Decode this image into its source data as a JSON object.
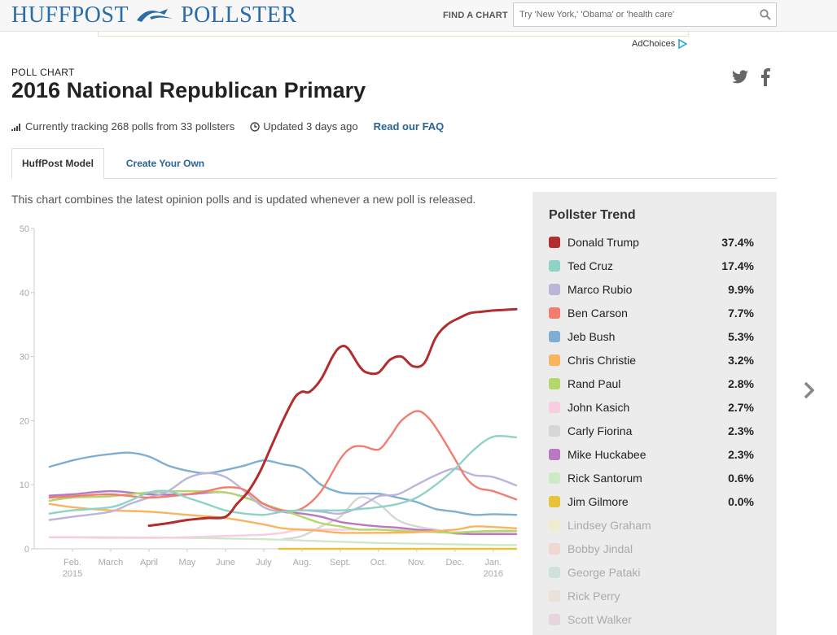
{
  "header": {
    "logo_left": "HUFFPOST",
    "logo_right": "POLLSTER",
    "find_label": "FIND A CHART",
    "search_placeholder": "Try 'New York,' 'Obama' or 'health care'",
    "ad_choices": "AdChoices"
  },
  "page": {
    "kicker": "POLL CHART",
    "title": "2016 National Republican Primary",
    "tracking": "Currently tracking 268 polls from 33 pollsters",
    "updated": "Updated 3 days ago",
    "faq": "Read our FAQ",
    "tabs": [
      "HuffPost Model",
      "Create Your Own"
    ],
    "description": "This chart combines the latest opinion polls and is updated whenever a new poll is released."
  },
  "legend": {
    "title": "Pollster Trend",
    "items": [
      {
        "name": "Donald Trump",
        "value": "37.4%",
        "color": "#b22d2d",
        "active": true
      },
      {
        "name": "Ted Cruz",
        "value": "17.4%",
        "color": "#8fd3c7",
        "active": true
      },
      {
        "name": "Marco Rubio",
        "value": "9.9%",
        "color": "#bcb4d9",
        "active": true
      },
      {
        "name": "Ben Carson",
        "value": "7.7%",
        "color": "#f27d6f",
        "active": true
      },
      {
        "name": "Jeb Bush",
        "value": "5.3%",
        "color": "#7eaed3",
        "active": true
      },
      {
        "name": "Chris Christie",
        "value": "3.2%",
        "color": "#f9b460",
        "active": true
      },
      {
        "name": "Rand Paul",
        "value": "2.8%",
        "color": "#b2d86b",
        "active": true
      },
      {
        "name": "John Kasich",
        "value": "2.7%",
        "color": "#f8cce1",
        "active": true
      },
      {
        "name": "Carly Fiorina",
        "value": "2.3%",
        "color": "#d6d6d6",
        "active": true
      },
      {
        "name": "Mike Huckabee",
        "value": "2.3%",
        "color": "#b978c0",
        "active": true
      },
      {
        "name": "Rick Santorum",
        "value": "0.6%",
        "color": "#cbeac5",
        "active": true
      },
      {
        "name": "Jim Gilmore",
        "value": "0.0%",
        "color": "#e8c33a",
        "active": true
      },
      {
        "name": "Lindsey Graham",
        "value": "",
        "color": "#f7eeb0",
        "active": false
      },
      {
        "name": "Bobby Jindal",
        "value": "",
        "color": "#f4c1ac",
        "active": false
      },
      {
        "name": "George Pataki",
        "value": "",
        "color": "#a9d6c8",
        "active": false
      },
      {
        "name": "Rick Perry",
        "value": "",
        "color": "#e6d8c2",
        "active": false
      },
      {
        "name": "Scott Walker",
        "value": "",
        "color": "#dfb8cf",
        "active": false
      }
    ]
  },
  "chart_data": {
    "type": "line",
    "title": "2016 National Republican Primary",
    "xlabel": "",
    "ylabel": "",
    "ylim": [
      0,
      50
    ],
    "yticks": [
      0,
      10,
      20,
      30,
      40,
      50
    ],
    "xlim": [
      0,
      12.6
    ],
    "xticks": [
      {
        "x": 1,
        "label": "Feb.",
        "sub": "2015"
      },
      {
        "x": 2,
        "label": "March",
        "sub": ""
      },
      {
        "x": 3,
        "label": "April",
        "sub": ""
      },
      {
        "x": 4,
        "label": "May",
        "sub": ""
      },
      {
        "x": 5,
        "label": "June",
        "sub": ""
      },
      {
        "x": 6,
        "label": "July",
        "sub": ""
      },
      {
        "x": 7,
        "label": "Aug.",
        "sub": ""
      },
      {
        "x": 8,
        "label": "Sept.",
        "sub": ""
      },
      {
        "x": 9,
        "label": "Oct.",
        "sub": ""
      },
      {
        "x": 10,
        "label": "Nov.",
        "sub": ""
      },
      {
        "x": 11,
        "label": "Dec.",
        "sub": ""
      },
      {
        "x": 12,
        "label": "Jan.",
        "sub": "2016"
      }
    ],
    "series": [
      {
        "name": "Carly Fiorina",
        "color": "#d6d6d6",
        "x": [
          6.5,
          7.0,
          7.5,
          8.0,
          8.5,
          9.0,
          9.5,
          10.0,
          10.5,
          11.0,
          11.5,
          12.0,
          12.6
        ],
        "values": [
          1.5,
          2.0,
          3.5,
          5.0,
          8.0,
          7.0,
          4.5,
          3.5,
          3.0,
          2.5,
          2.4,
          2.4,
          2.3
        ]
      },
      {
        "name": "Rick Santorum",
        "color": "#cbeac5",
        "x": [
          0.4,
          2,
          4,
          6,
          7,
          8,
          9,
          10,
          11,
          12,
          12.6
        ],
        "values": [
          1.8,
          1.8,
          1.7,
          1.5,
          1.3,
          1.1,
          0.9,
          0.8,
          0.7,
          0.6,
          0.6
        ]
      },
      {
        "name": "John Kasich",
        "color": "#f8cce1",
        "x": [
          0.4,
          1,
          2,
          3,
          4,
          5,
          6,
          6.5,
          7,
          8,
          9,
          10,
          11,
          12,
          12.6
        ],
        "values": [
          1.8,
          1.8,
          1.7,
          1.7,
          1.8,
          2.0,
          2.2,
          2.5,
          3.0,
          3.0,
          3.0,
          2.8,
          2.6,
          2.7,
          2.7
        ]
      },
      {
        "name": "Mike Huckabee",
        "color": "#b978c0",
        "x": [
          0.4,
          1,
          2,
          3,
          4,
          5,
          6,
          6.5,
          7,
          7.5,
          8,
          8.5,
          9,
          9.5,
          10,
          10.5,
          11,
          11.5,
          12,
          12.6
        ],
        "values": [
          8.3,
          8.5,
          9.0,
          8.5,
          8.5,
          8.8,
          7.0,
          5.8,
          5.5,
          5.0,
          4.2,
          3.8,
          3.5,
          3.3,
          3.0,
          2.8,
          2.4,
          2.3,
          2.3,
          2.3
        ]
      },
      {
        "name": "Rand Paul",
        "color": "#b2d86b",
        "x": [
          0.4,
          1,
          2,
          3,
          4,
          5,
          5.5,
          6,
          6.5,
          7,
          7.5,
          8,
          8.5,
          9,
          9.5,
          10,
          10.5,
          11,
          11.5,
          12,
          12.6
        ],
        "values": [
          7.5,
          8.0,
          8.2,
          8.8,
          9.0,
          8.8,
          8.0,
          7.0,
          6.0,
          5.0,
          4.0,
          3.5,
          3.0,
          3.0,
          2.8,
          2.7,
          2.6,
          2.5,
          2.7,
          2.8,
          2.8
        ]
      },
      {
        "name": "Chris Christie",
        "color": "#f9b460",
        "x": [
          0.4,
          1,
          2,
          3,
          4,
          5,
          6,
          6.5,
          7,
          7.5,
          8,
          9,
          10,
          11,
          11.5,
          12,
          12.6
        ],
        "values": [
          7.0,
          6.5,
          6.0,
          5.8,
          5.3,
          4.8,
          3.8,
          3.2,
          3.0,
          2.8,
          2.5,
          2.5,
          2.6,
          3.0,
          3.5,
          3.4,
          3.2
        ]
      },
      {
        "name": "Jeb Bush",
        "color": "#7eaed3",
        "x": [
          0.4,
          1,
          1.5,
          2,
          2.5,
          3,
          3.5,
          4,
          4.5,
          5,
          5.5,
          6,
          6.5,
          7,
          7.5,
          8,
          8.5,
          9,
          9.5,
          10,
          10.5,
          11,
          11.5,
          12,
          12.6
        ],
        "values": [
          12.8,
          13.8,
          14.4,
          14.8,
          15.0,
          14.4,
          13.0,
          12.2,
          11.8,
          12.3,
          13.0,
          13.8,
          13.2,
          12.5,
          10.0,
          8.8,
          8.6,
          8.6,
          8.0,
          7.3,
          6.2,
          5.8,
          5.3,
          5.4,
          5.3
        ]
      },
      {
        "name": "Marco Rubio",
        "color": "#bcb4d9",
        "x": [
          0.4,
          1,
          2,
          2.5,
          3,
          3.5,
          4,
          4.5,
          5,
          5.5,
          6,
          6.5,
          7,
          7.5,
          8,
          8.5,
          9,
          9.5,
          10,
          10.5,
          11,
          11.5,
          12,
          12.6
        ],
        "values": [
          4.5,
          5.0,
          5.8,
          7.0,
          8.0,
          9.0,
          11.0,
          11.8,
          11.2,
          9.0,
          6.5,
          5.8,
          6.0,
          5.8,
          5.5,
          6.5,
          8.2,
          8.5,
          10.0,
          11.5,
          12.5,
          11.5,
          11.2,
          9.9
        ]
      },
      {
        "name": "Ben Carson",
        "color": "#f27d6f",
        "x": [
          0.4,
          1,
          2,
          3,
          4,
          4.5,
          5,
          5.5,
          6,
          6.5,
          7,
          7.5,
          8,
          8.3,
          8.6,
          9,
          9.3,
          9.6,
          10,
          10.3,
          10.6,
          11,
          11.3,
          11.6,
          12,
          12.6
        ],
        "values": [
          8.0,
          8.2,
          8.5,
          8.0,
          8.5,
          9.0,
          9.6,
          9.2,
          7.0,
          6.0,
          6.3,
          9.0,
          14.0,
          15.8,
          16.0,
          15.5,
          17.5,
          20.0,
          21.5,
          20.5,
          18.0,
          14.0,
          11.0,
          9.5,
          9.0,
          7.7
        ]
      },
      {
        "name": "Ted Cruz",
        "color": "#8fd3c7",
        "x": [
          0.4,
          1,
          2,
          2.5,
          3,
          3.5,
          4,
          4.5,
          5,
          5.5,
          6,
          6.5,
          7,
          7.5,
          8,
          8.5,
          9,
          9.5,
          10,
          10.5,
          11,
          11.5,
          12,
          12.6
        ],
        "values": [
          5.5,
          6.0,
          6.5,
          7.5,
          8.8,
          9.0,
          8.0,
          7.0,
          6.0,
          5.5,
          5.3,
          5.8,
          6.0,
          6.0,
          6.0,
          6.2,
          6.5,
          7.0,
          8.0,
          10.0,
          12.5,
          15.5,
          17.5,
          17.4
        ]
      },
      {
        "name": "Jim Gilmore",
        "color": "#e8c33a",
        "x": [
          6.4,
          8,
          10,
          12,
          12.6
        ],
        "values": [
          0.0,
          0.0,
          0.0,
          0.0,
          0.0
        ]
      },
      {
        "name": "Donald Trump",
        "color": "#b22d2d",
        "x": [
          3.0,
          3.5,
          4.0,
          4.5,
          5.0,
          5.3,
          5.6,
          5.9,
          6.2,
          6.5,
          6.8,
          7.0,
          7.2,
          7.5,
          7.8,
          8.0,
          8.2,
          8.5,
          8.7,
          9.0,
          9.3,
          9.6,
          9.9,
          10.2,
          10.5,
          10.8,
          11.1,
          11.4,
          11.7,
          12.0,
          12.3,
          12.6
        ],
        "values": [
          3.6,
          4.0,
          4.5,
          4.8,
          5.0,
          7.0,
          9.0,
          12.0,
          16.0,
          20.0,
          23.5,
          24.5,
          24.5,
          26.5,
          30.0,
          31.5,
          31.3,
          28.5,
          27.5,
          27.5,
          29.5,
          30.0,
          28.5,
          29.0,
          33.0,
          35.0,
          36.0,
          36.8,
          37.0,
          37.2,
          37.3,
          37.4
        ]
      }
    ]
  }
}
